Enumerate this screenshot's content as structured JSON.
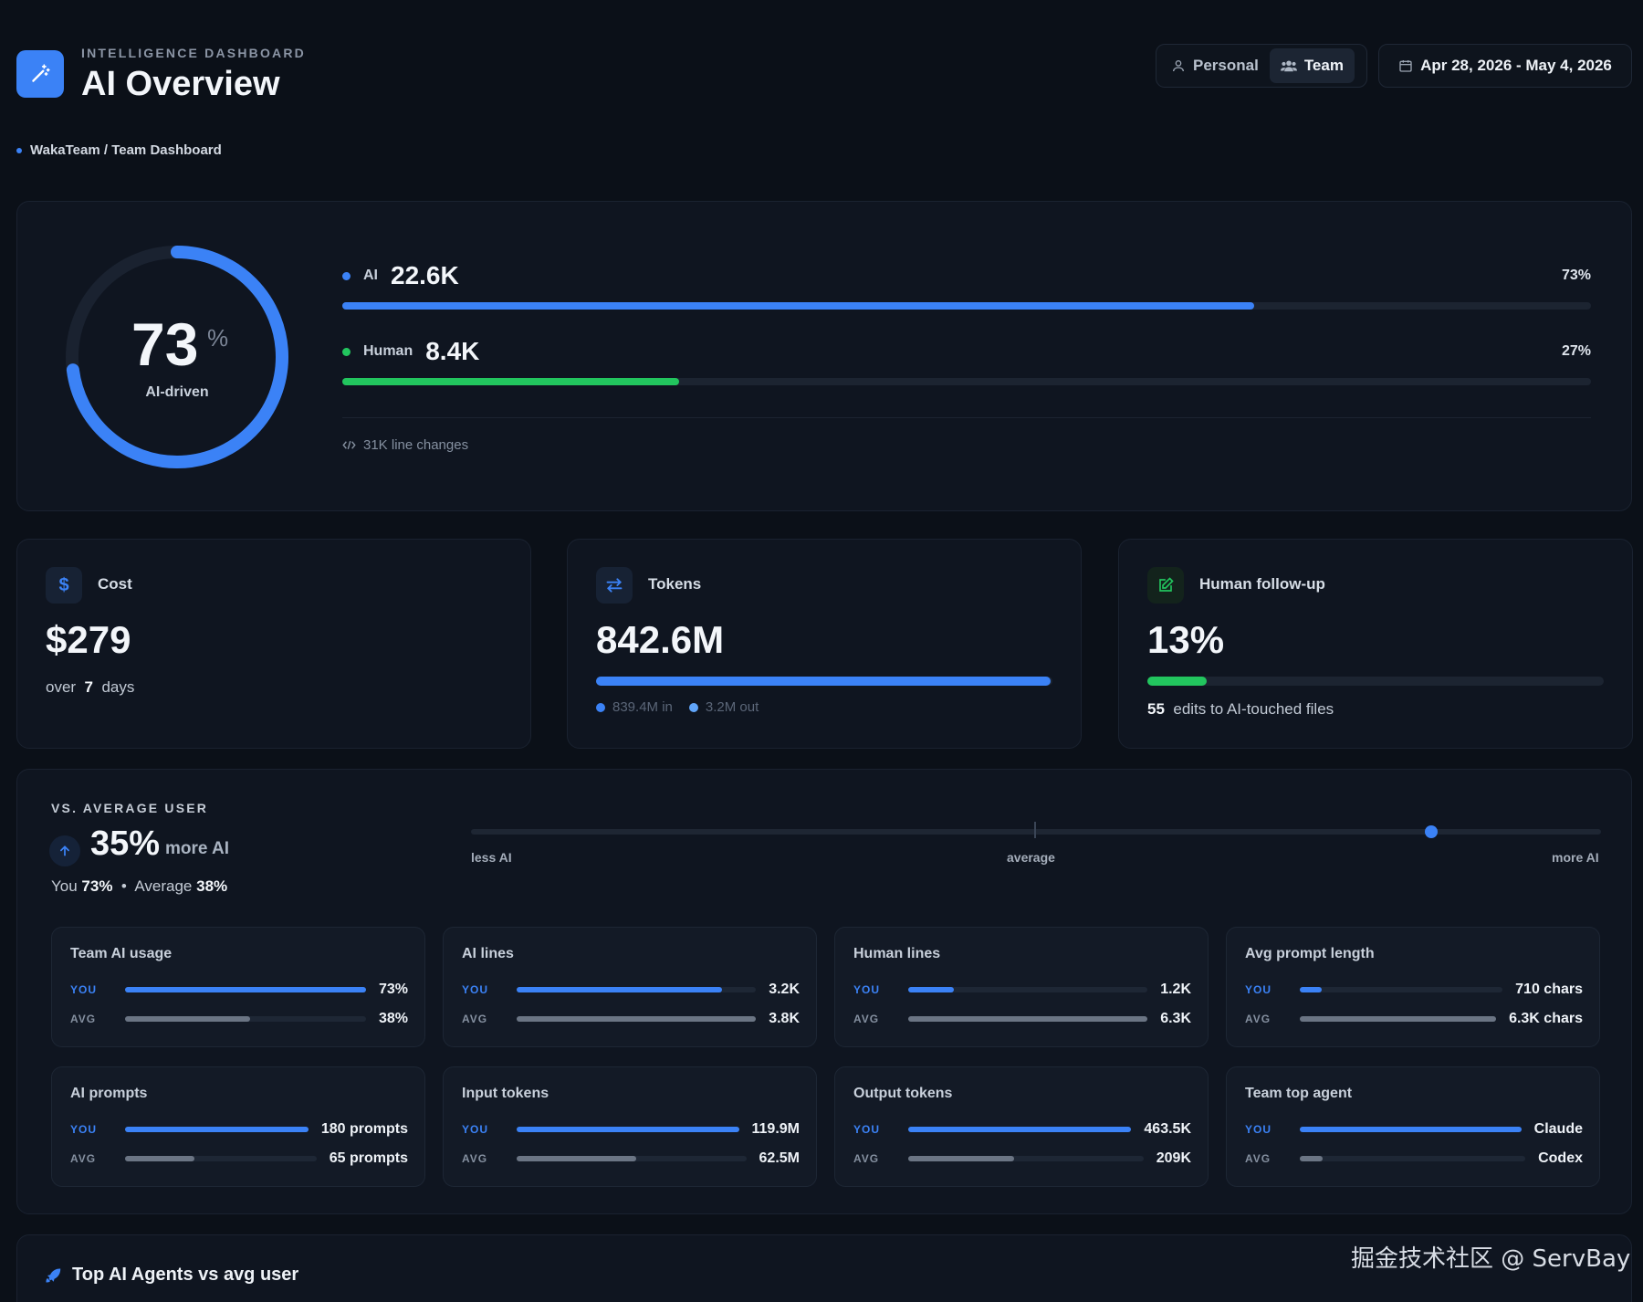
{
  "header": {
    "eyebrow": "INTELLIGENCE DASHBOARD",
    "title": "AI Overview",
    "breadcrumb": "WakaTeam / Team Dashboard",
    "toggles": {
      "personal": "Personal",
      "team": "Team",
      "active": "team"
    },
    "date_range": "Apr 28, 2026 - May 4, 2026"
  },
  "summary": {
    "ai_percent": "73",
    "ai_percent_unit": "%",
    "ai_percent_value": 0.73,
    "ai_driven_label": "AI-driven",
    "ai": {
      "label": "AI",
      "value": "22.6K",
      "percent": "73%",
      "fraction": 0.73,
      "color": "#3b82f6"
    },
    "human": {
      "label": "Human",
      "value": "8.4K",
      "percent": "27%",
      "fraction": 0.27,
      "color": "#22c55e"
    },
    "line_changes": "31K line changes"
  },
  "stats": {
    "cost": {
      "label": "Cost",
      "value": "$279",
      "sub_prefix": "over",
      "sub_days": "7",
      "sub_suffix": "days"
    },
    "tokens": {
      "label": "Tokens",
      "value": "842.6M",
      "in": "839.4M in",
      "out": "3.2M out",
      "in_fraction": 0.996
    },
    "followup": {
      "label": "Human follow-up",
      "value": "13%",
      "fraction": 0.13,
      "edits": "55",
      "edits_label": "edits to AI-touched files"
    }
  },
  "versus": {
    "eyebrow": "VS. AVERAGE USER",
    "value": "35%",
    "value_label": "more AI",
    "you_label": "You",
    "you_value": "73%",
    "separator": "•",
    "avg_label": "Average",
    "avg_value": "38%",
    "scale": {
      "less": "less AI",
      "average": "average",
      "more": "more AI",
      "position": 0.85
    },
    "you_tag": "YOU",
    "avg_tag": "AVG",
    "metrics": [
      {
        "title": "Team AI usage",
        "you": "73%",
        "avg": "38%",
        "you_fill": 1.0,
        "avg_fill": 0.52
      },
      {
        "title": "AI lines",
        "you": "3.2K",
        "avg": "3.8K",
        "you_fill": 0.86,
        "avg_fill": 1.0
      },
      {
        "title": "Human lines",
        "you": "1.2K",
        "avg": "6.3K",
        "you_fill": 0.19,
        "avg_fill": 1.0
      },
      {
        "title": "Avg prompt length",
        "you": "710 chars",
        "avg": "6.3K chars",
        "you_fill": 0.11,
        "avg_fill": 1.0
      },
      {
        "title": "AI prompts",
        "you": "180 prompts",
        "avg": "65 prompts",
        "you_fill": 1.0,
        "avg_fill": 0.36
      },
      {
        "title": "Input tokens",
        "you": "119.9M",
        "avg": "62.5M",
        "you_fill": 1.0,
        "avg_fill": 0.52
      },
      {
        "title": "Output tokens",
        "you": "463.5K",
        "avg": "209K",
        "you_fill": 1.0,
        "avg_fill": 0.45
      },
      {
        "title": "Team top agent",
        "you": "Claude",
        "avg": "Codex",
        "you_fill": 1.0,
        "avg_fill": 0.1
      }
    ]
  },
  "agents": {
    "title": "Top AI Agents vs avg user"
  },
  "watermark": "掘金技术社区 @ ServBay",
  "colors": {
    "accent": "#3b82f6",
    "human": "#22c55e",
    "avg_bar": "#6b7584"
  }
}
